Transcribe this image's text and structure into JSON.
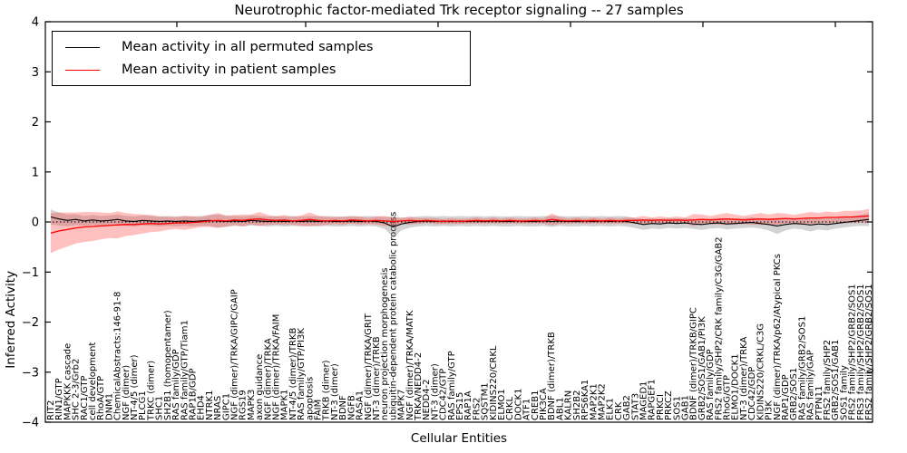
{
  "figure": {
    "title": "Neurotrophic factor-mediated Trk receptor signaling -- 27 samples",
    "xlabel": "Cellular Entities",
    "ylabel": "Inferred Activity",
    "legend": [
      {
        "label": "Mean activity in all permuted samples",
        "color": "#000000"
      },
      {
        "label": "Mean activity in patient samples",
        "color": "#ff0000"
      }
    ]
  },
  "chart_data": {
    "type": "line",
    "title": "Neurotrophic factor-mediated Trk receptor signaling -- 27 samples",
    "xlabel": "Cellular Entities",
    "ylabel": "Inferred Activity",
    "ylim": [
      -4,
      4
    ],
    "yticks": [
      4,
      3,
      2,
      1,
      0,
      -1,
      -2,
      -3,
      -4
    ],
    "grid": false,
    "zero_reference_dotted_line": true,
    "legend_position": "upper left",
    "colors": {
      "permuted_line": "#000000",
      "patient_line": "#ff0000",
      "patient_band": "#ff3c3c",
      "patient_band_opacity": 0.32,
      "permuted_band": "#808080",
      "permuted_band_opacity": 0.35
    },
    "categories": [
      "RIT2",
      "RIN1/GTP",
      "MAPKKK cascade",
      "SHC 2-3/Grb2",
      "RAC1/GTP",
      "cell development",
      "RhoA/GTP",
      "DNM1",
      "ChemicalAbstracts:146-91-8",
      "NGF (dimer)",
      "NT-4/5 (dimer)",
      "PLCG1",
      "TRKC (dimer)",
      "SHC1",
      "SH2B1 (homopentamer)",
      "RAS family/GDP",
      "RAS family/GTP/Tiam1",
      "RAP1B/GDP",
      "EHD4",
      "NTRK1",
      "NRAS",
      "GIPC1",
      "NGF (dimer)/TRKA/GIPC/GAIP",
      "RGS19",
      "MAPK3",
      "axon guidance",
      "NGF (dimer)/TRKA",
      "NGF (dimer)/TRKA/FAIM",
      "MAPK1",
      "NT-4/5 (dimer)/TRKB",
      "RAS family/GTP/PI3K",
      "apoptosis",
      "FAIM",
      "TRKB (dimer)",
      "NT-3 (dimer)",
      "BDNF",
      "NGFB",
      "RASA1",
      "NGF (dimer)/TRKA/GRIT",
      "NT-3 (dimer)/TRKB",
      "neuron projection morphogenesis",
      "ubiquitin-dependent protein catabolic process",
      "MAPK7",
      "NGF (dimer)/TRKA/MATK",
      "TRKA/NEDD4-2",
      "NEDD4-2",
      "NT-3 (dimer)",
      "CDC42/GTP",
      "RAS family/GTP",
      "EPS15",
      "RAP1A",
      "FRS2",
      "SQSTM1",
      "KIDINS220/CRKL",
      "ELMO1",
      "CRKL",
      "DOCK1",
      "ATF1",
      "CREB1",
      "PIK3CA",
      "BDNF (dimer)/TRKB",
      "ABL1",
      "KALRN",
      "SH2B2",
      "RPS6KA1",
      "MAP2K1",
      "MAP2K2",
      "ELK1",
      "CRK",
      "GAB2",
      "STAT3",
      "MAGED1",
      "RAPGEF1",
      "PRKCI",
      "PRKCZ",
      "SOS1",
      "GAB1",
      "BDNF (dimer)/TRKB/GIPC",
      "GRB2/SOS1/GAB1/PI3K",
      "RAS family/GDP",
      "FRS2 family/SHP2/CRK family/C3G/GAB2",
      "RhoG/GTP",
      "ELMO1/DOCK1",
      "NT-3 (dimer)/TRKA",
      "CDC42/GDP",
      "KIDINS220/CRKL/C3G",
      "PI3K",
      "NGF (dimer)/TRKA/p62/Atypical PKCs",
      "RAP1/GDP",
      "GRB2/SOS1",
      "RAS family/GRB2/SOS1",
      "RAS family/GAP",
      "PTPN11",
      "FRS2 family/SHP2",
      "GRB2/SOS1/GAB1",
      "SOS1 family",
      "FRS2 family/SHP2/GRB2/SOS1",
      "FRS3 family/SHP2/GRB2/SOS1",
      "FRS2 family/SHP2/GRB2/SOS1"
    ],
    "series": [
      {
        "name": "Mean activity in all permuted samples",
        "color": "#000000",
        "values": [
          0.1,
          0.06,
          0.03,
          0.05,
          0.02,
          0.04,
          0.02,
          0.03,
          0.05,
          0.02,
          0.01,
          0.03,
          0.02,
          0.01,
          0.02,
          0.01,
          0.02,
          0.01,
          0.02,
          0.03,
          0.02,
          0.01,
          0.02,
          0.01,
          0.03,
          0.02,
          0.01,
          0.02,
          0.01,
          0.02,
          0.01,
          0.02,
          0.01,
          0.02,
          0.01,
          0.01,
          0.02,
          0.01,
          0.02,
          0.01,
          -0.02,
          -0.1,
          -0.04,
          -0.01,
          0.01,
          0.02,
          0.01,
          0.02,
          0.01,
          0.02,
          0.01,
          0.02,
          0.01,
          0.02,
          0.01,
          0.01,
          0.02,
          0.01,
          0.01,
          0.02,
          0.01,
          0.02,
          0.01,
          0.01,
          0.02,
          0.01,
          0.02,
          0.01,
          0.02,
          0.01,
          -0.02,
          -0.05,
          -0.03,
          -0.04,
          -0.02,
          -0.03,
          -0.02,
          -0.04,
          -0.05,
          -0.03,
          -0.02,
          -0.04,
          -0.03,
          -0.02,
          -0.01,
          -0.03,
          -0.05,
          -0.08,
          -0.05,
          -0.03,
          -0.04,
          -0.06,
          -0.04,
          -0.05,
          -0.03,
          -0.01,
          0.01,
          0.03,
          0.05
        ],
        "band_halfwidth": [
          0.15,
          0.13,
          0.12,
          0.11,
          0.1,
          0.1,
          0.1,
          0.1,
          0.1,
          0.1,
          0.1,
          0.1,
          0.1,
          0.1,
          0.1,
          0.1,
          0.1,
          0.1,
          0.1,
          0.11,
          0.13,
          0.11,
          0.1,
          0.1,
          0.1,
          0.1,
          0.1,
          0.1,
          0.1,
          0.1,
          0.1,
          0.1,
          0.1,
          0.1,
          0.1,
          0.1,
          0.1,
          0.1,
          0.1,
          0.1,
          0.12,
          0.2,
          0.13,
          0.1,
          0.1,
          0.1,
          0.1,
          0.1,
          0.1,
          0.1,
          0.1,
          0.1,
          0.1,
          0.1,
          0.1,
          0.1,
          0.1,
          0.1,
          0.1,
          0.1,
          0.11,
          0.1,
          0.1,
          0.1,
          0.1,
          0.1,
          0.1,
          0.1,
          0.1,
          0.1,
          0.1,
          0.11,
          0.1,
          0.1,
          0.1,
          0.1,
          0.1,
          0.1,
          0.11,
          0.1,
          0.1,
          0.11,
          0.1,
          0.1,
          0.1,
          0.1,
          0.12,
          0.16,
          0.12,
          0.1,
          0.11,
          0.13,
          0.11,
          0.12,
          0.1,
          0.1,
          0.1,
          0.11,
          0.13
        ]
      },
      {
        "name": "Mean activity in patient samples",
        "color": "#ff0000",
        "values": [
          -0.22,
          -0.18,
          -0.15,
          -0.12,
          -0.1,
          -0.09,
          -0.08,
          -0.07,
          -0.06,
          -0.05,
          -0.05,
          -0.04,
          -0.03,
          -0.04,
          -0.03,
          -0.02,
          -0.02,
          -0.01,
          0.0,
          0.02,
          0.03,
          0.02,
          0.04,
          0.03,
          0.05,
          0.06,
          0.04,
          0.03,
          0.04,
          0.02,
          0.03,
          0.05,
          0.03,
          0.02,
          0.03,
          0.02,
          0.04,
          0.03,
          0.02,
          0.03,
          0.02,
          0.01,
          0.02,
          0.03,
          0.02,
          0.03,
          0.02,
          0.01,
          0.02,
          0.01,
          0.02,
          0.03,
          0.02,
          0.03,
          0.02,
          0.03,
          0.02,
          0.02,
          0.03,
          0.02,
          0.05,
          0.03,
          0.02,
          0.03,
          0.02,
          0.03,
          0.02,
          0.03,
          0.02,
          0.03,
          0.03,
          0.04,
          0.03,
          0.04,
          0.03,
          0.04,
          0.03,
          0.04,
          0.05,
          0.04,
          0.05,
          0.06,
          0.05,
          0.04,
          0.05,
          0.06,
          0.05,
          0.06,
          0.07,
          0.06,
          0.07,
          0.08,
          0.08,
          0.09,
          0.09,
          0.1,
          0.1,
          0.11,
          0.12
        ],
        "band_halfwidth": [
          0.4,
          0.37,
          0.34,
          0.31,
          0.3,
          0.29,
          0.27,
          0.25,
          0.27,
          0.23,
          0.21,
          0.19,
          0.17,
          0.15,
          0.13,
          0.12,
          0.14,
          0.12,
          0.1,
          0.12,
          0.15,
          0.11,
          0.1,
          0.12,
          0.1,
          0.14,
          0.1,
          0.08,
          0.1,
          0.08,
          0.1,
          0.14,
          0.1,
          0.08,
          0.07,
          0.08,
          0.07,
          0.08,
          0.06,
          0.08,
          0.1,
          0.08,
          0.06,
          0.08,
          0.06,
          0.05,
          0.06,
          0.05,
          0.06,
          0.05,
          0.05,
          0.06,
          0.05,
          0.06,
          0.05,
          0.06,
          0.05,
          0.05,
          0.06,
          0.05,
          0.12,
          0.07,
          0.05,
          0.06,
          0.05,
          0.06,
          0.05,
          0.06,
          0.05,
          0.06,
          0.06,
          0.08,
          0.06,
          0.07,
          0.06,
          0.07,
          0.06,
          0.12,
          0.1,
          0.08,
          0.1,
          0.12,
          0.1,
          0.08,
          0.1,
          0.12,
          0.1,
          0.12,
          0.1,
          0.08,
          0.1,
          0.12,
          0.1,
          0.12,
          0.1,
          0.12,
          0.12,
          0.12,
          0.14
        ]
      }
    ]
  }
}
